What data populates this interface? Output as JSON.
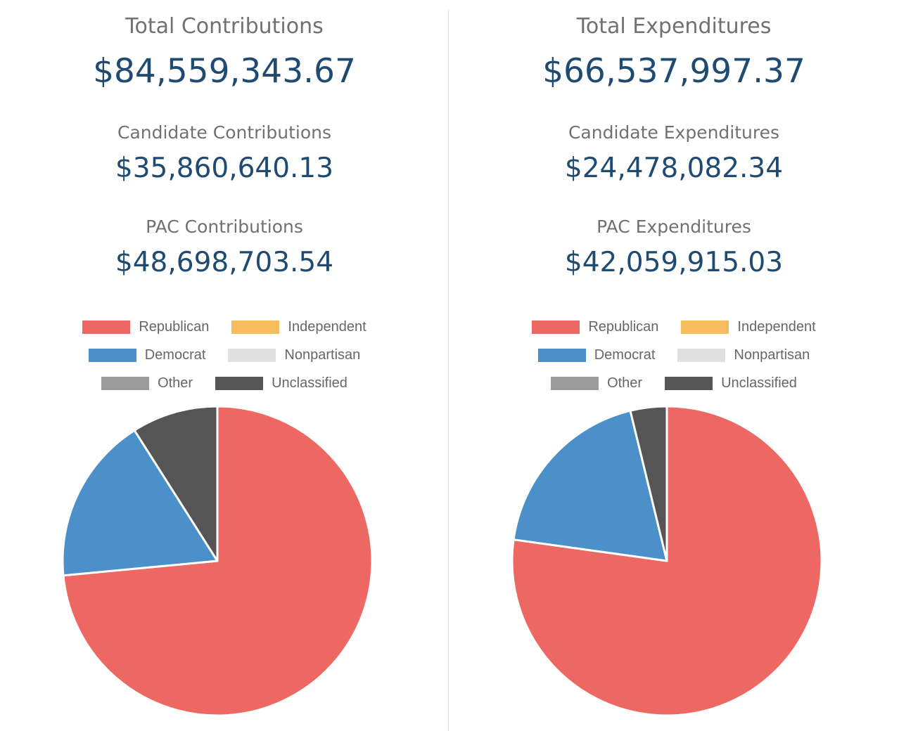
{
  "colors": {
    "label": "#717171",
    "value": "#1f4b73",
    "slice_border": "#ffffff"
  },
  "contributions": {
    "total_label": "Total Contributions",
    "total_value": "$84,559,343.67",
    "candidate_label": "Candidate Contributions",
    "candidate_value": "$35,860,640.13",
    "pac_label": "PAC Contributions",
    "pac_value": "$48,698,703.54"
  },
  "expenditures": {
    "total_label": "Total Expenditures",
    "total_value": "$66,537,997.37",
    "candidate_label": "Candidate Expenditures",
    "candidate_value": "$24,478,082.34",
    "pac_label": "PAC Expenditures",
    "pac_value": "$42,059,915.03"
  },
  "legend": {
    "rows": [
      [
        {
          "label": "Republican",
          "color": "#ee6863"
        },
        {
          "label": "Independent",
          "color": "#f4bc5d"
        }
      ],
      [
        {
          "label": "Democrat",
          "color": "#4b90c8"
        },
        {
          "label": "Nonpartisan",
          "color": "#e0e0e0"
        }
      ],
      [
        {
          "label": "Other",
          "color": "#9b9b9b"
        },
        {
          "label": "Unclassified",
          "color": "#555555"
        }
      ]
    ]
  },
  "chart_data": [
    {
      "type": "pie",
      "categories": [
        "Republican",
        "Independent",
        "Democrat",
        "Nonpartisan",
        "Other",
        "Unclassified"
      ],
      "colors": [
        "#ee6863",
        "#f4bc5d",
        "#4b90c8",
        "#e0e0e0",
        "#9b9b9b",
        "#555555"
      ],
      "values": [
        73.5,
        0,
        17.5,
        0,
        0,
        9.0
      ],
      "start_angle_deg": 0,
      "direction": "clockwise",
      "legend_position": "top"
    },
    {
      "type": "pie",
      "categories": [
        "Republican",
        "Independent",
        "Democrat",
        "Nonpartisan",
        "Other",
        "Unclassified"
      ],
      "colors": [
        "#ee6863",
        "#f4bc5d",
        "#4b90c8",
        "#e0e0e0",
        "#9b9b9b",
        "#555555"
      ],
      "values": [
        77.2,
        0,
        19.0,
        0,
        0,
        3.8
      ],
      "start_angle_deg": 0,
      "direction": "clockwise",
      "legend_position": "top"
    }
  ]
}
